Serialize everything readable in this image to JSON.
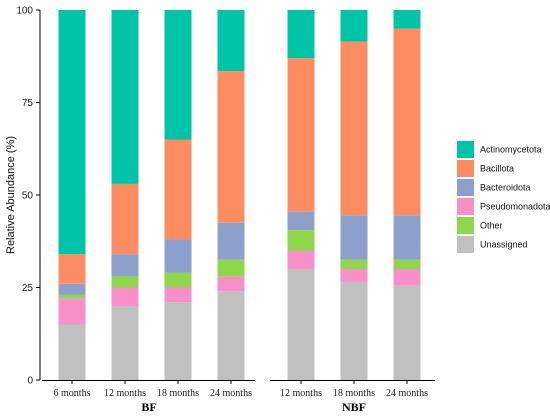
{
  "chart_data": {
    "type": "bar",
    "stacked": true,
    "title": "",
    "ylabel": "Relative Abundance (%)",
    "ylim": [
      0,
      100
    ],
    "yticks": [
      "0",
      "25",
      "50",
      "75",
      "100"
    ],
    "grid": false,
    "legend_position": "right",
    "panels": [
      {
        "label": "BF",
        "categories": [
          "6 months",
          "12 months",
          "18 months",
          "24 months"
        ],
        "series": [
          {
            "name": "Unassigned",
            "values": [
              15,
              20,
              21,
              24
            ]
          },
          {
            "name": "Pseudomonadota",
            "values": [
              7,
              5,
              4,
              4
            ]
          },
          {
            "name": "Other",
            "values": [
              1,
              3,
              4,
              4.5
            ]
          },
          {
            "name": "Bacteroidota",
            "values": [
              3,
              6,
              9,
              10
            ]
          },
          {
            "name": "Bacillota",
            "values": [
              8,
              19,
              27,
              41
            ]
          },
          {
            "name": "Actinomycetota",
            "values": [
              66,
              47,
              35,
              16.5
            ]
          }
        ]
      },
      {
        "label": "NBF",
        "categories": [
          "12 months",
          "18 months",
          "24 months"
        ],
        "series": [
          {
            "name": "Unassigned",
            "values": [
              30,
              26.5,
              25.5
            ]
          },
          {
            "name": "Pseudomonadota",
            "values": [
              5,
              3.5,
              4.5
            ]
          },
          {
            "name": "Other",
            "values": [
              5.5,
              2.5,
              2.5
            ]
          },
          {
            "name": "Bacteroidota",
            "values": [
              5,
              12,
              12
            ]
          },
          {
            "name": "Bacillota",
            "values": [
              41.5,
              47,
              50.5
            ]
          },
          {
            "name": "Actinomycetota",
            "values": [
              13,
              8.5,
              5
            ]
          }
        ]
      }
    ],
    "legend": [
      "Actinomycetota",
      "Bacillota",
      "Bacteroidota",
      "Pseudomonadota",
      "Other",
      "Unassigned"
    ],
    "colors": {
      "Actinomycetota": "#00c4a7",
      "Bacillota": "#fc8d62",
      "Bacteroidota": "#8da0cb",
      "Pseudomonadota": "#f78fc8",
      "Other": "#8fd64a",
      "Unassigned": "#c0c0c0"
    }
  }
}
